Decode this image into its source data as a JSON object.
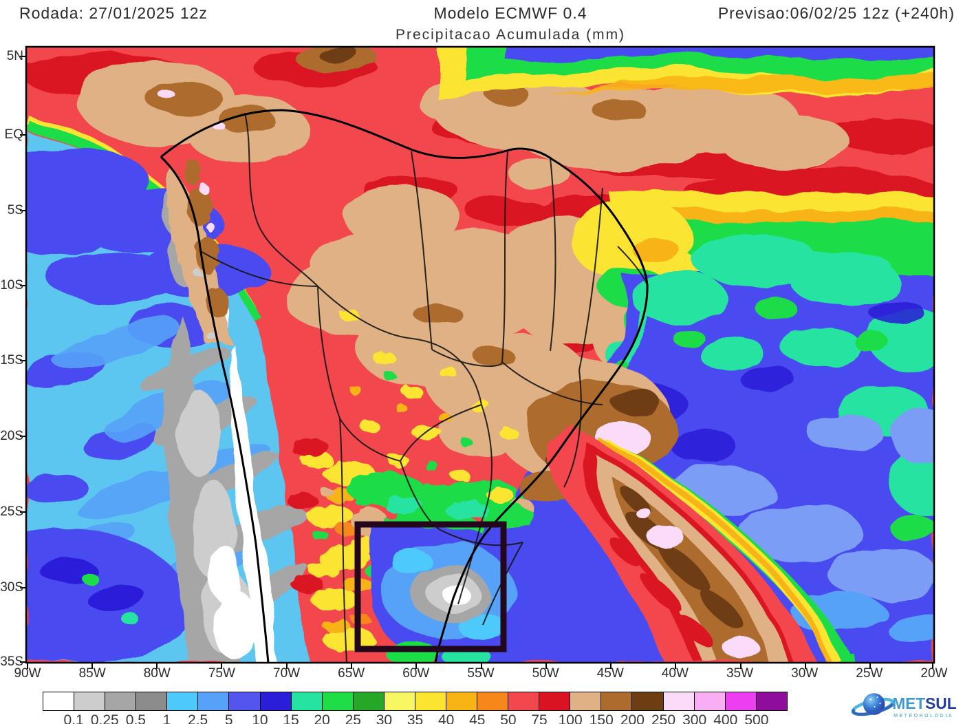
{
  "header": {
    "run_label": "Rodada: 27/01/2025 12z",
    "model_title": "Modelo ECMWF 0.4",
    "subtitle": "Precipitacao Acumulada (mm)",
    "forecast_label": "Previsao:06/02/25 12z (+240h)"
  },
  "map": {
    "y_axis_labels": [
      "5N",
      "EQ",
      "5S",
      "10S",
      "15S",
      "20S",
      "25S",
      "30S",
      "35S"
    ],
    "x_axis_labels": [
      "90W",
      "85W",
      "80W",
      "75W",
      "70W",
      "65W",
      "60W",
      "55W",
      "50W",
      "45W",
      "40W",
      "35W",
      "30W",
      "25W",
      "20W"
    ],
    "highlight_box": {
      "present": true,
      "lat_range": "26S-35S",
      "lon_range": "65W-53W"
    }
  },
  "colorbar": {
    "unit": "mm",
    "levels": [
      "0.1",
      "0.25",
      "0.5",
      "1",
      "2.5",
      "5",
      "10",
      "15",
      "20",
      "25",
      "30",
      "35",
      "40",
      "45",
      "50",
      "75",
      "100",
      "150",
      "200",
      "250",
      "300",
      "400",
      "500"
    ],
    "colors": [
      "#ffffff",
      "#cdcdcd",
      "#a6a6a6",
      "#8c8c8c",
      "#4ec9fb",
      "#57a2f8",
      "#5355ee",
      "#2a1ed8",
      "#27e3a1",
      "#1fdd46",
      "#27a727",
      "#f7f763",
      "#fbe531",
      "#f8b414",
      "#f8871b",
      "#f3474e",
      "#da1323",
      "#dfb184",
      "#ad6c2e",
      "#6e3e12",
      "#fadcfa",
      "#f8aef3",
      "#ee3ef1",
      "#8e0d9a"
    ]
  },
  "logo": {
    "brand_primary": "MET",
    "brand_secondary": "SUL",
    "tagline": "METEOROLOGIA"
  }
}
